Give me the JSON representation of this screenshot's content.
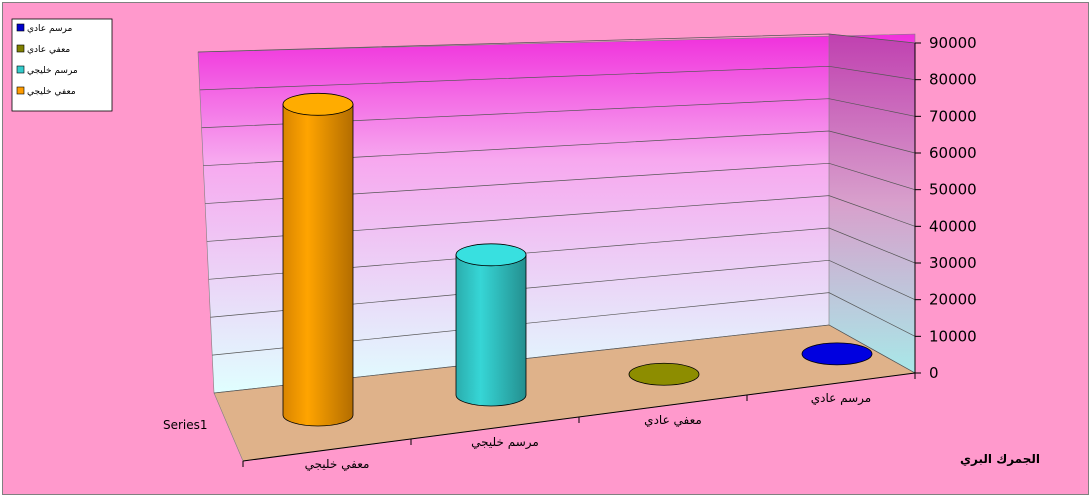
{
  "chart_data": {
    "type": "bar",
    "style": "3d-cylinder",
    "categories": [
      "معفي خليجي",
      "مرسم خليجي",
      "معفي عادي",
      "مرسم عادي"
    ],
    "series": [
      {
        "name": "Series1",
        "values": [
          82000,
          37000,
          200,
          300
        ]
      }
    ],
    "point_colors": [
      "#ff9c00",
      "#33cccc",
      "#808000",
      "#0000cc"
    ],
    "xlabel": "الجمرك البري",
    "ylabel": "",
    "ylim": [
      0,
      90000
    ],
    "yticks": [
      "0",
      "10000",
      "20000",
      "30000",
      "40000",
      "50000",
      "60000",
      "70000",
      "80000",
      "90000"
    ],
    "grid": true,
    "legend": {
      "placement": "top-left",
      "entries": [
        {
          "label": "مرسم عادي",
          "color": "#0000cc"
        },
        {
          "label": "معفي عادي",
          "color": "#808000"
        },
        {
          "label": "مرسم خليجي",
          "color": "#33cccc"
        },
        {
          "label": "معفي خليجي",
          "color": "#ff9c00"
        }
      ]
    },
    "colors": {
      "chart_area": "#ff99cc",
      "floor": "#dfb28a",
      "wall_top": "#f030dc",
      "wall_bottom": "#e0ffff",
      "side_wall_top": "#c040b0",
      "side_wall_bottom": "#a8e8e8"
    }
  }
}
